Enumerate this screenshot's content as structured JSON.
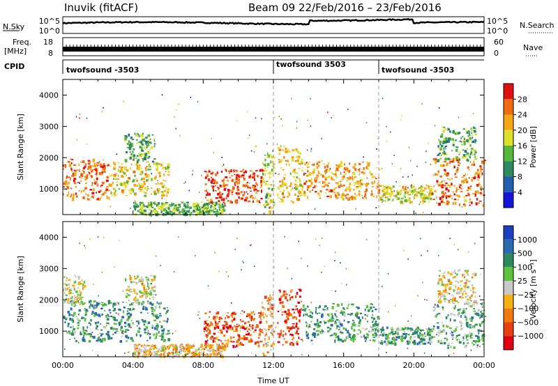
{
  "header": {
    "title_left": "Inuvik (fitACF)",
    "title_right": "Beam 09   22/Feb/2016 – 23/Feb/2016"
  },
  "strip": {
    "nsky_label": "N.Sky",
    "nsky_ticks": [
      "10^5",
      "10^0"
    ],
    "nsearch_label": "N.Search",
    "nsearch_ticks": [
      "10^5",
      "10^0"
    ],
    "freq_label": "Freq.",
    "freq_unit": "[MHz]",
    "freq_ticks": [
      "18",
      "8"
    ],
    "nave_label": "Nave",
    "nave_ticks": [
      "60",
      "0"
    ],
    "cpid_label": "CPID",
    "cpid_segments": [
      {
        "label": "twofsound -3503",
        "start_hour": 0
      },
      {
        "label": "twofsound 3503",
        "start_hour": 12
      },
      {
        "label": "twofsound -3503",
        "start_hour": 18
      }
    ]
  },
  "chart_data": [
    {
      "type": "heatmap",
      "name": "power",
      "ylabel": "Slant Range [km]",
      "xlim": [
        0,
        24
      ],
      "ylim": [
        180,
        4500
      ],
      "yticks": [
        1000,
        2000,
        3000,
        4000
      ],
      "colorbar_label": "Power [dB]",
      "colorbar_ticks": [
        4,
        8,
        12,
        16,
        20,
        24,
        28
      ],
      "colorbar_colors": [
        "#1515d8",
        "#235fb0",
        "#2c8a5e",
        "#55b83a",
        "#e0df2a",
        "#f5a515",
        "#f06a10",
        "#e01010"
      ],
      "vertical_markers": [
        12,
        18
      ],
      "patches": [
        {
          "t": [
            0.0,
            2.6
          ],
          "r": [
            700,
            2000
          ],
          "level": 0.8
        },
        {
          "t": [
            2.6,
            6.0
          ],
          "r": [
            800,
            1900
          ],
          "level": 0.6
        },
        {
          "t": [
            3.5,
            5.2
          ],
          "r": [
            1900,
            2800
          ],
          "level": 0.4
        },
        {
          "t": [
            4.0,
            9.2
          ],
          "r": [
            200,
            600
          ],
          "level": 0.45
        },
        {
          "t": [
            8.0,
            11.3
          ],
          "r": [
            550,
            1650
          ],
          "level": 0.88
        },
        {
          "t": [
            11.3,
            12.0
          ],
          "r": [
            200,
            2200
          ],
          "level": 0.5
        },
        {
          "t": [
            12.2,
            13.6
          ],
          "r": [
            600,
            2400
          ],
          "level": 0.65
        },
        {
          "t": [
            13.6,
            18.0
          ],
          "r": [
            700,
            1900
          ],
          "level": 0.72
        },
        {
          "t": [
            18.0,
            21.0
          ],
          "r": [
            600,
            1150
          ],
          "level": 0.58
        },
        {
          "t": [
            21.0,
            24.0
          ],
          "r": [
            500,
            2000
          ],
          "level": 0.78
        },
        {
          "t": [
            21.3,
            23.5
          ],
          "r": [
            1900,
            3000
          ],
          "level": 0.4
        }
      ]
    },
    {
      "type": "heatmap",
      "name": "velocity",
      "ylabel": "Slant Range [km]",
      "xlabel": "Time UT",
      "xlim": [
        0,
        24
      ],
      "ylim": [
        180,
        4500
      ],
      "yticks": [
        1000,
        2000,
        3000,
        4000
      ],
      "xticks": [
        "00:00",
        "04:00",
        "08:00",
        "12:00",
        "16:00",
        "20:00",
        "00:00"
      ],
      "colorbar_label": "Velocity [m s⁻¹]",
      "colorbar_ticks": [
        "1000",
        "500",
        "100",
        "25",
        "−25",
        "−100",
        "−500",
        "−1000"
      ],
      "colorbar_colors": [
        "#1a3fbf",
        "#2a6ab0",
        "#2c8a5e",
        "#5cc23a",
        "#c8c8c8",
        "#f5b010",
        "#f07a10",
        "#e84010",
        "#e00010"
      ],
      "vertical_markers": [
        12,
        18
      ],
      "patches": [
        {
          "t": [
            0.0,
            6.0
          ],
          "r": [
            700,
            2000
          ],
          "level": 0.72
        },
        {
          "t": [
            0.0,
            1.2
          ],
          "r": [
            1900,
            2800
          ],
          "level": 0.5
        },
        {
          "t": [
            3.5,
            5.2
          ],
          "r": [
            1900,
            2800
          ],
          "level": 0.5
        },
        {
          "t": [
            4.0,
            9.2
          ],
          "r": [
            200,
            600
          ],
          "level": 0.4
        },
        {
          "t": [
            8.0,
            11.3
          ],
          "r": [
            550,
            1650
          ],
          "level": 0.2
        },
        {
          "t": [
            11.3,
            12.0
          ],
          "r": [
            200,
            2200
          ],
          "level": 0.35
        },
        {
          "t": [
            12.2,
            13.6
          ],
          "r": [
            600,
            2400
          ],
          "level": 0.15
        },
        {
          "t": [
            13.6,
            18.0
          ],
          "r": [
            700,
            1900
          ],
          "level": 0.7
        },
        {
          "t": [
            18.0,
            21.0
          ],
          "r": [
            600,
            1150
          ],
          "level": 0.68
        },
        {
          "t": [
            21.0,
            24.0
          ],
          "r": [
            500,
            2000
          ],
          "level": 0.65
        },
        {
          "t": [
            21.3,
            23.5
          ],
          "r": [
            1900,
            3000
          ],
          "level": 0.45
        }
      ]
    }
  ]
}
